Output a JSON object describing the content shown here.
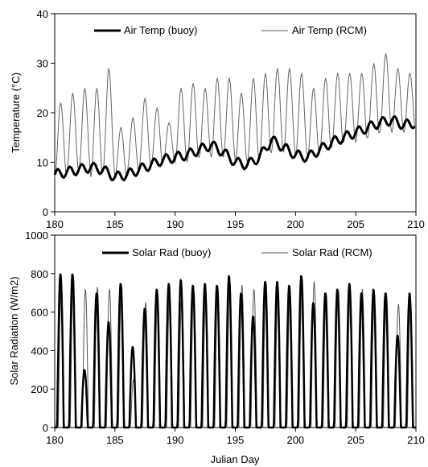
{
  "chart_data": [
    {
      "type": "line",
      "title": "",
      "xlabel": "",
      "ylabel": "Temperature (°C)",
      "xlim": [
        180,
        210
      ],
      "ylim": [
        0,
        40
      ],
      "x_ticks": [
        180,
        185,
        190,
        195,
        200,
        205,
        210
      ],
      "y_ticks": [
        0,
        10,
        20,
        30,
        40
      ],
      "grid": false,
      "legend_position": "top",
      "series": [
        {
          "name": "Air Temp (buoy)",
          "style": "thick",
          "color": "#000000",
          "x": [
            180,
            181,
            182,
            183,
            184,
            185,
            186,
            187,
            188,
            189,
            190,
            191,
            192,
            193,
            194,
            195,
            196,
            197,
            198,
            199,
            200,
            201,
            202,
            203,
            204,
            205,
            206,
            207,
            208,
            209,
            210
          ],
          "y": [
            7.5,
            8,
            8.5,
            9,
            8.5,
            7,
            7.5,
            8.5,
            9.5,
            10.5,
            11,
            11.5,
            12.5,
            13.5,
            12,
            10,
            9.5,
            11,
            14.5,
            13,
            11.5,
            11,
            12.5,
            14,
            15,
            16,
            17,
            18,
            18.5,
            17.5,
            18
          ]
        },
        {
          "name": "Air Temp (RCM)",
          "style": "thin",
          "color": "#666666",
          "x": [
            180,
            181,
            182,
            183,
            184,
            185,
            186,
            187,
            188,
            189,
            190,
            191,
            192,
            193,
            194,
            195,
            196,
            197,
            198,
            199,
            200,
            201,
            202,
            203,
            204,
            205,
            206,
            207,
            208,
            209,
            210
          ],
          "daily_max": [
            22,
            24,
            25,
            25,
            29,
            17,
            19,
            23,
            21,
            18,
            25,
            26,
            25,
            27,
            27,
            24,
            27,
            28,
            29,
            29,
            28,
            25,
            27,
            28,
            28,
            28,
            30,
            32,
            29,
            28,
            32
          ],
          "daily_min": [
            7,
            8,
            8,
            7,
            8,
            7,
            8,
            9,
            9,
            10,
            10,
            10,
            11,
            11,
            11,
            10,
            10,
            11,
            12,
            12,
            11,
            11,
            12,
            13,
            14,
            14,
            15,
            16,
            16,
            16,
            16
          ]
        }
      ]
    },
    {
      "type": "line",
      "title": "",
      "xlabel": "Julian Day",
      "ylabel": "Solar Radiation (W/m2)",
      "xlim": [
        180,
        210
      ],
      "ylim": [
        0,
        1000
      ],
      "x_ticks": [
        180,
        185,
        190,
        195,
        200,
        205,
        210
      ],
      "y_ticks": [
        0,
        200,
        400,
        600,
        800,
        1000
      ],
      "grid": false,
      "legend_position": "top",
      "series": [
        {
          "name": "Solar Rad (buoy)",
          "style": "thick",
          "color": "#000000",
          "x": [
            180,
            181,
            182,
            183,
            184,
            185,
            186,
            187,
            188,
            189,
            190,
            191,
            192,
            193,
            194,
            195,
            196,
            197,
            198,
            199,
            200,
            201,
            202,
            203,
            204,
            205,
            206,
            207,
            208,
            209,
            210
          ],
          "daily_peak": [
            800,
            800,
            300,
            700,
            550,
            750,
            420,
            620,
            720,
            750,
            770,
            740,
            750,
            740,
            790,
            700,
            580,
            760,
            760,
            740,
            790,
            650,
            700,
            720,
            750,
            700,
            720,
            700,
            480,
            700,
            700
          ]
        },
        {
          "name": "Solar Rad (RCM)",
          "style": "thin",
          "color": "#555555",
          "x": [
            180,
            181,
            182,
            183,
            184,
            185,
            186,
            187,
            188,
            189,
            190,
            191,
            192,
            193,
            194,
            195,
            196,
            197,
            198,
            199,
            200,
            201,
            202,
            203,
            204,
            205,
            206,
            207,
            208,
            209,
            210
          ],
          "daily_peak": [
            780,
            790,
            720,
            730,
            720,
            740,
            250,
            650,
            700,
            700,
            680,
            720,
            700,
            730,
            760,
            740,
            720,
            760,
            740,
            700,
            780,
            760,
            700,
            720,
            720,
            720,
            700,
            700,
            640,
            650,
            650
          ]
        }
      ]
    }
  ]
}
